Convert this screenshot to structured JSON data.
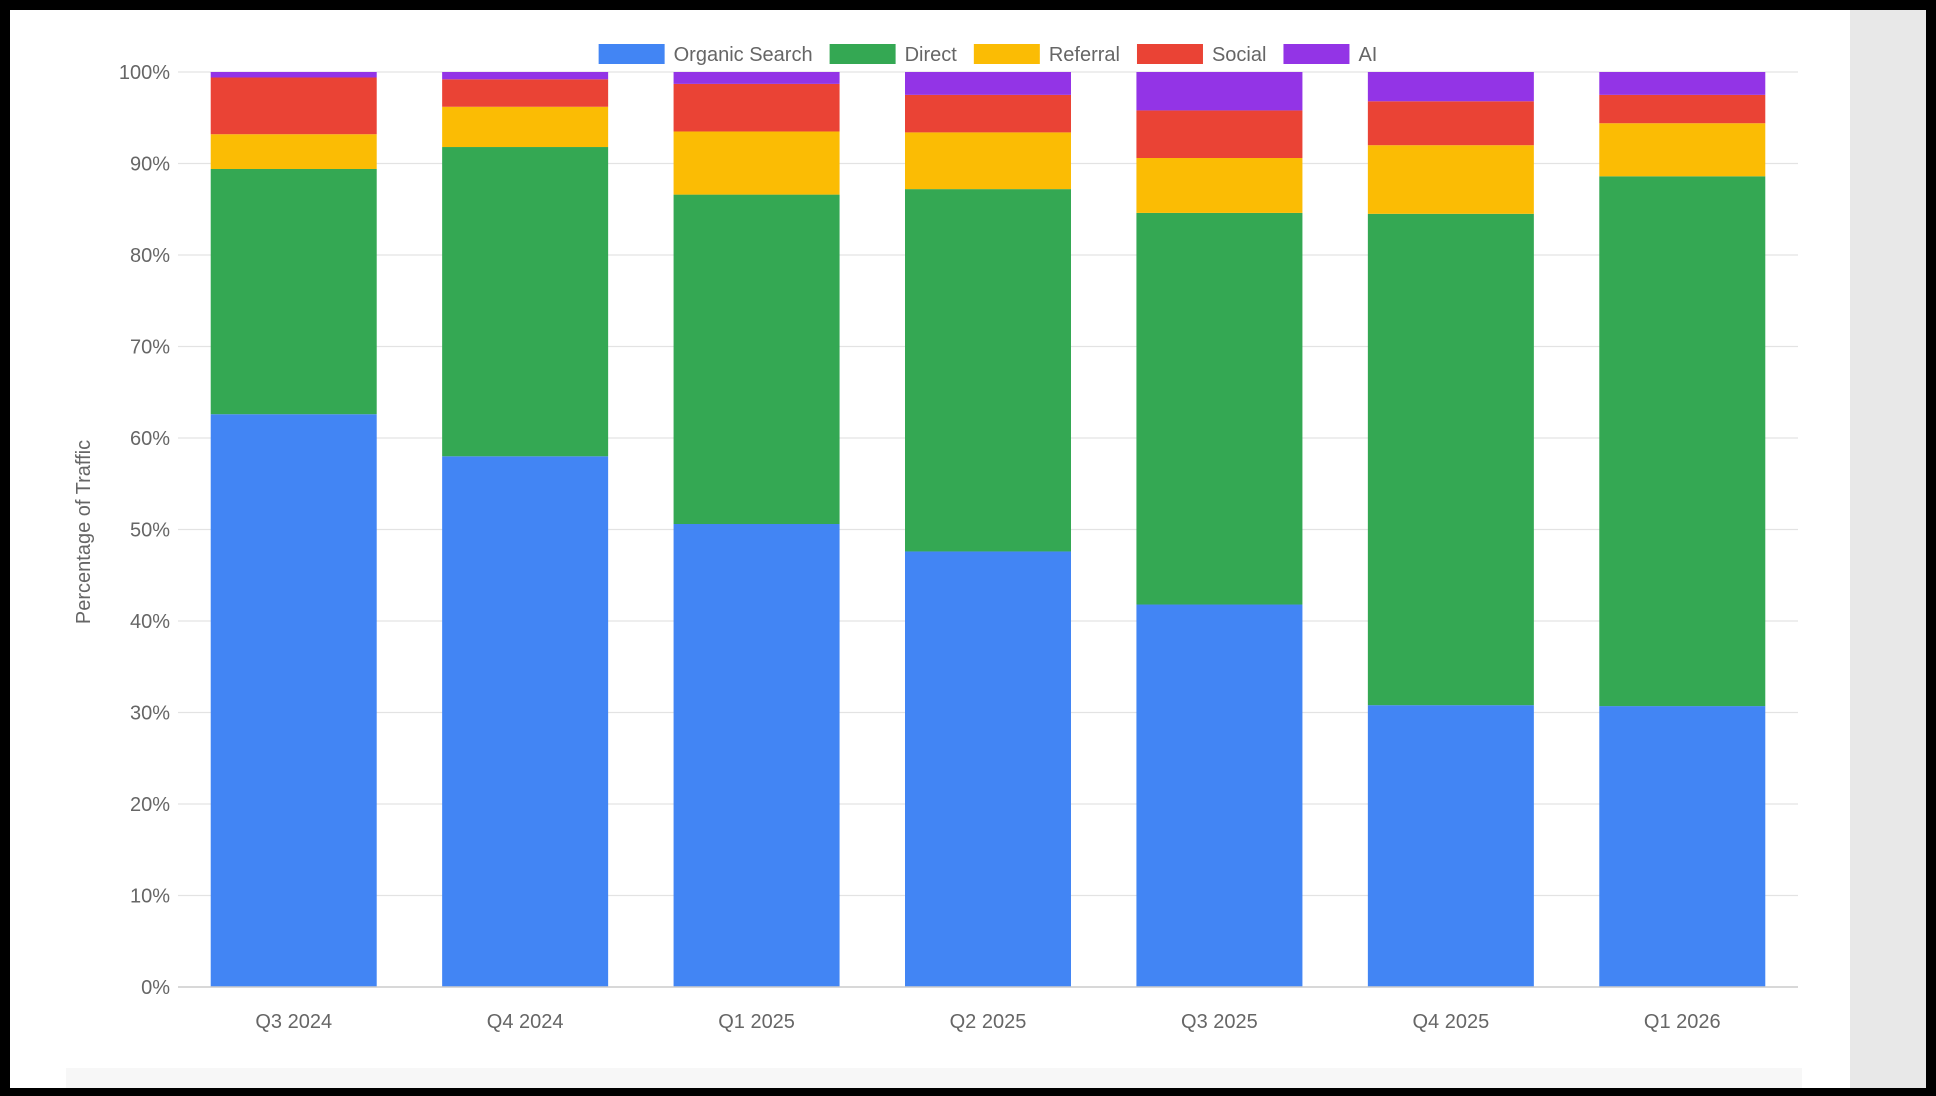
{
  "chart_data": {
    "type": "bar",
    "stacked": true,
    "title": "",
    "xlabel": "",
    "ylabel": "Percentage of Traffic",
    "ylim": [
      0,
      100
    ],
    "yticks": [
      "0%",
      "10%",
      "20%",
      "30%",
      "40%",
      "50%",
      "60%",
      "70%",
      "80%",
      "90%",
      "100%"
    ],
    "grid": true,
    "legend_position": "top-center",
    "categories": [
      "Q3 2024",
      "Q4 2024",
      "Q1 2025",
      "Q2 2025",
      "Q3 2025",
      "Q4 2025",
      "Q1 2026"
    ],
    "series": [
      {
        "name": "Organic Search",
        "color": "#4285f4",
        "values": [
          62.6,
          58.0,
          50.6,
          47.6,
          41.8,
          30.8,
          30.7
        ]
      },
      {
        "name": "Direct",
        "color": "#34a853",
        "values": [
          26.8,
          33.8,
          36.0,
          39.6,
          42.8,
          53.7,
          57.9
        ]
      },
      {
        "name": "Referral",
        "color": "#fbbc04",
        "values": [
          3.8,
          4.4,
          6.9,
          6.2,
          6.0,
          7.5,
          5.8
        ]
      },
      {
        "name": "Social",
        "color": "#ea4335",
        "values": [
          6.2,
          3.0,
          5.2,
          4.1,
          5.2,
          4.8,
          3.1
        ]
      },
      {
        "name": "AI",
        "color": "#9334e6",
        "values": [
          0.6,
          0.8,
          1.3,
          2.5,
          4.2,
          3.2,
          2.5
        ]
      }
    ]
  }
}
